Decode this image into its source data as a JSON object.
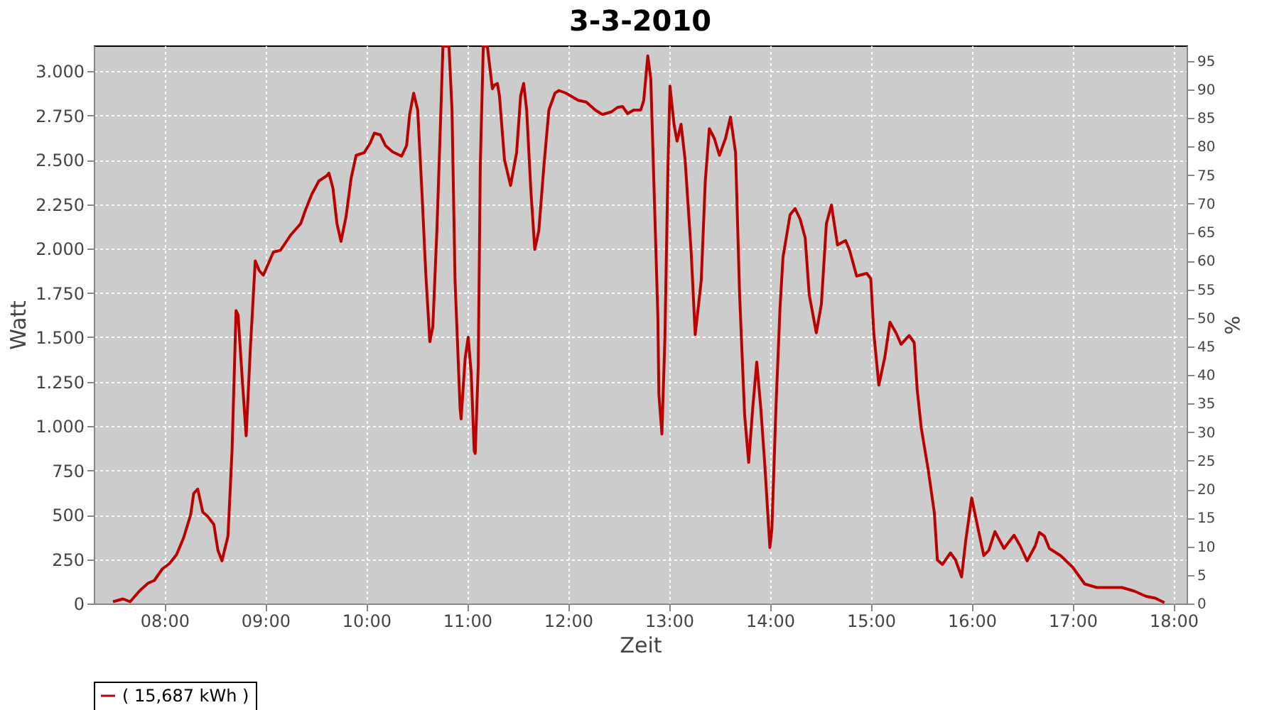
{
  "chart_data": {
    "type": "line",
    "title": "3-3-2010",
    "xlabel": "Zeit",
    "ylabel": "Watt",
    "y2label": "%",
    "xlim": [
      7.3,
      18.13
    ],
    "ylim": [
      0,
      3144
    ],
    "y2lim": [
      0,
      97.7
    ],
    "xticks": [
      {
        "value": 8,
        "label": "08:00"
      },
      {
        "value": 9,
        "label": "09:00"
      },
      {
        "value": 10,
        "label": "10:00"
      },
      {
        "value": 11,
        "label": "11:00"
      },
      {
        "value": 12,
        "label": "12:00"
      },
      {
        "value": 13,
        "label": "13:00"
      },
      {
        "value": 14,
        "label": "14:00"
      },
      {
        "value": 15,
        "label": "15:00"
      },
      {
        "value": 16,
        "label": "16:00"
      },
      {
        "value": 17,
        "label": "17:00"
      },
      {
        "value": 18,
        "label": "18:00"
      }
    ],
    "yticks": [
      0,
      250,
      500,
      750,
      {
        "value": 1000,
        "label": "1.000"
      },
      {
        "value": 1250,
        "label": "1.250"
      },
      {
        "value": 1500,
        "label": "1.500"
      },
      {
        "value": 1750,
        "label": "1.750"
      },
      {
        "value": 2000,
        "label": "2.000"
      },
      {
        "value": 2250,
        "label": "2.250"
      },
      {
        "value": 2500,
        "label": "2.500"
      },
      {
        "value": 2750,
        "label": "2.750"
      },
      {
        "value": 3000,
        "label": "3.000"
      }
    ],
    "y2ticks": [
      0,
      5,
      10,
      15,
      20,
      25,
      30,
      35,
      40,
      45,
      50,
      55,
      60,
      65,
      70,
      75,
      80,
      85,
      90,
      95
    ],
    "grid": true,
    "legend": "bottom",
    "series": [
      {
        "name": "( 15,687 kWh )",
        "color": "#bb0000",
        "x": [
          7.49,
          7.59,
          7.66,
          7.76,
          7.84,
          7.9,
          7.98,
          8.05,
          8.12,
          8.19,
          8.26,
          8.29,
          8.33,
          8.38,
          8.43,
          8.49,
          8.53,
          8.57,
          8.63,
          8.67,
          8.71,
          8.73,
          8.77,
          8.81,
          8.85,
          8.9,
          8.94,
          8.98,
          9.08,
          9.15,
          9.25,
          9.35,
          9.4,
          9.46,
          9.53,
          9.61,
          9.63,
          9.67,
          9.71,
          9.75,
          9.8,
          9.85,
          9.9,
          9.98,
          10.04,
          10.08,
          10.14,
          10.19,
          10.26,
          10.35,
          10.4,
          10.43,
          10.47,
          10.51,
          10.55,
          10.59,
          10.63,
          10.66,
          10.7,
          10.74,
          10.76,
          10.82,
          10.85,
          10.88,
          10.93,
          10.94,
          10.98,
          11.01,
          11.04,
          11.07,
          11.08,
          11.11,
          11.13,
          11.16,
          11.2,
          11.25,
          11.27,
          11.3,
          11.32,
          11.37,
          11.43,
          11.49,
          11.53,
          11.56,
          11.59,
          11.63,
          11.67,
          11.71,
          11.76,
          11.81,
          11.87,
          11.91,
          11.98,
          12.1,
          12.18,
          12.27,
          12.34,
          12.43,
          12.49,
          12.54,
          12.59,
          12.65,
          12.72,
          12.75,
          12.79,
          12.82,
          12.85,
          12.89,
          12.9,
          12.93,
          12.96,
          12.99,
          13.01,
          13.05,
          13.08,
          13.12,
          13.16,
          13.22,
          13.26,
          13.32,
          13.36,
          13.4,
          13.45,
          13.5,
          13.56,
          13.61,
          13.66,
          13.7,
          13.75,
          13.79,
          13.83,
          13.87,
          13.91,
          13.95,
          14.0,
          14.02,
          14.06,
          14.1,
          14.13,
          14.2,
          14.25,
          14.3,
          14.35,
          14.39,
          14.46,
          14.51,
          14.56,
          14.61,
          14.67,
          14.75,
          14.79,
          14.86,
          14.96,
          15.0,
          15.03,
          15.08,
          15.14,
          15.19,
          15.25,
          15.3,
          15.38,
          15.43,
          15.46,
          15.5,
          15.57,
          15.63,
          15.66,
          15.71,
          15.79,
          15.84,
          15.9,
          15.94,
          16.0,
          16.06,
          16.12,
          16.17,
          16.23,
          16.32,
          16.42,
          16.48,
          16.55,
          16.63,
          16.67,
          16.72,
          16.77,
          16.88,
          17.0,
          17.12,
          17.24,
          17.49,
          17.61,
          17.73,
          17.82,
          17.91
        ],
        "values": [
          10,
          26,
          10,
          75,
          115,
          130,
          195,
          225,
          275,
          370,
          500,
          620,
          645,
          515,
          490,
          445,
          300,
          240,
          380,
          860,
          1650,
          1625,
          1275,
          945,
          1420,
          1930,
          1875,
          1850,
          1980,
          1990,
          2075,
          2140,
          2220,
          2305,
          2380,
          2410,
          2425,
          2340,
          2140,
          2040,
          2180,
          2395,
          2525,
          2540,
          2595,
          2650,
          2640,
          2580,
          2545,
          2520,
          2580,
          2755,
          2875,
          2780,
          2340,
          1860,
          1475,
          1560,
          2100,
          2780,
          3140,
          3140,
          2780,
          1820,
          1100,
          1040,
          1380,
          1500,
          1300,
          860,
          845,
          1340,
          2460,
          3140,
          3140,
          2900,
          2920,
          2930,
          2860,
          2500,
          2355,
          2540,
          2860,
          2930,
          2780,
          2340,
          1995,
          2100,
          2460,
          2780,
          2875,
          2890,
          2875,
          2835,
          2825,
          2780,
          2755,
          2770,
          2795,
          2800,
          2760,
          2780,
          2780,
          2835,
          3085,
          2955,
          2380,
          1620,
          1180,
          955,
          1500,
          2460,
          2915,
          2700,
          2605,
          2700,
          2500,
          1980,
          1515,
          1820,
          2380,
          2675,
          2620,
          2525,
          2620,
          2740,
          2540,
          1740,
          1060,
          795,
          1100,
          1360,
          1100,
          780,
          315,
          420,
          1100,
          1660,
          1950,
          2190,
          2225,
          2165,
          2060,
          1740,
          1525,
          1685,
          2140,
          2245,
          2020,
          2045,
          1990,
          1845,
          1860,
          1830,
          1525,
          1230,
          1390,
          1585,
          1525,
          1460,
          1510,
          1470,
          1205,
          990,
          750,
          510,
          245,
          220,
          285,
          245,
          150,
          350,
          595,
          430,
          270,
          300,
          405,
          310,
          385,
          325,
          240,
          325,
          400,
          380,
          310,
          270,
          205,
          110,
          90,
          90,
          70,
          40,
          30,
          5
        ]
      }
    ]
  }
}
